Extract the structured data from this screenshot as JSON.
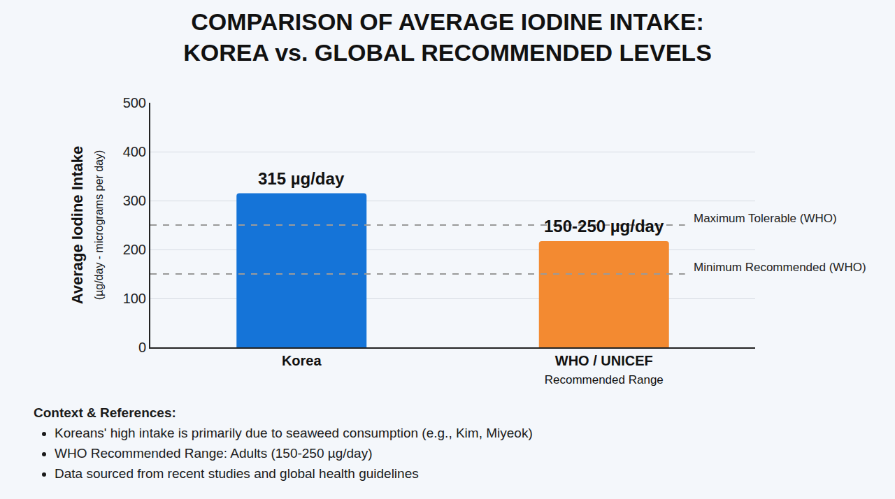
{
  "chart_data": {
    "type": "bar",
    "title": "COMPARISON OF AVERAGE IODINE INTAKE: KOREA vs. GLOBAL RECOMMENDED LEVELS",
    "y_label": "Average Iodine Intake",
    "y_sublabel": "(µg/day - micrograms per day)",
    "categories": [
      "Korea",
      "WHO / UNICEF"
    ],
    "category_subtitles": {
      "WHO / UNICEF": "Recommended Range"
    },
    "values": [
      315,
      217
    ],
    "colors": [
      "#1574d8",
      "#f38a31"
    ],
    "ylim": [
      0,
      500
    ],
    "yticks": [
      0,
      100,
      200,
      300,
      400,
      500
    ],
    "grid": true,
    "annotations": [
      {
        "category": "Korea",
        "text": "315 µg/day"
      },
      {
        "category": "WHO / UNICEF",
        "text": "150-250 µg/day"
      }
    ],
    "reference_lines": [
      {
        "value": 250,
        "label": "Maximum Tolerable (WHO)"
      },
      {
        "value": 150,
        "label": "Minimum Recommended (WHO)"
      }
    ],
    "notes_heading": "Context & References:",
    "notes": [
      "Koreans' high intake is primarily due to seaweed consumption (e.g., Kim, Miyeok)",
      "WHO Recommended Range: Adults (150-250 µg/day)",
      "Data sourced from recent studies and global health guidelines"
    ]
  }
}
